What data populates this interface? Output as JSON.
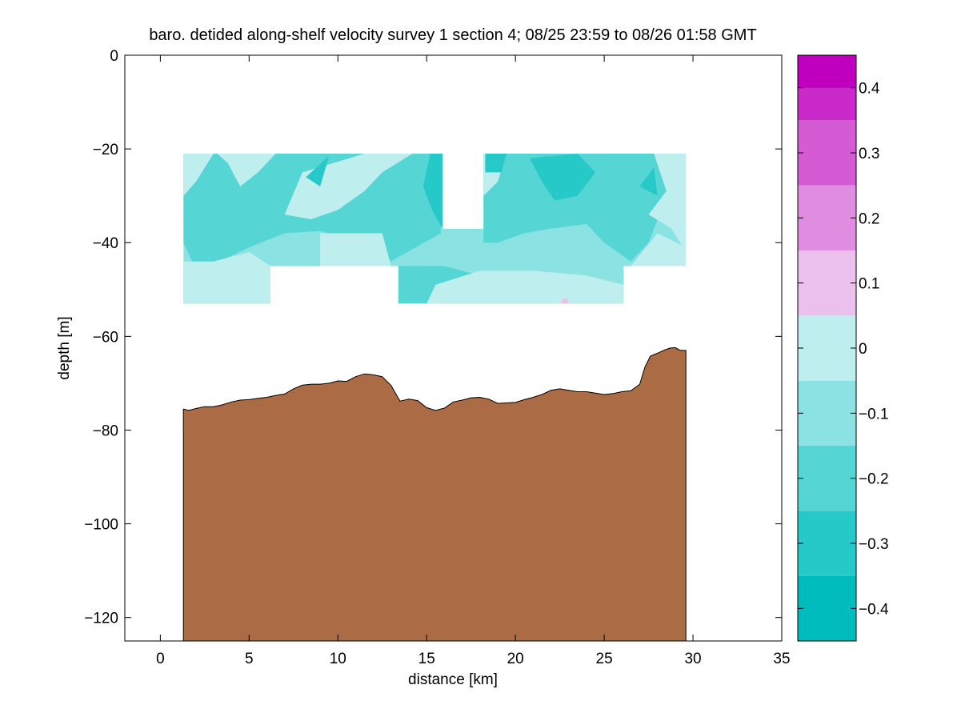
{
  "chart_data": {
    "type": "heatmap",
    "title": "baro. detided along-shelf velocity survey 1 section 4; 08/25 23:59 to 08/26 01:58 GMT",
    "xlabel": "distance [km]",
    "ylabel": "depth [m]",
    "xlim": [
      -2,
      35
    ],
    "ylim": [
      -125,
      0
    ],
    "x_ticks": [
      0,
      5,
      10,
      15,
      20,
      25,
      30,
      35
    ],
    "x_tick_labels": [
      "0",
      "5",
      "10",
      "15",
      "20",
      "25",
      "30",
      "35"
    ],
    "y_ticks": [
      0,
      -20,
      -40,
      -60,
      -80,
      -100,
      -120
    ],
    "y_tick_labels": [
      "0",
      "−20",
      "−40",
      "−60",
      "−80",
      "−100",
      "−120"
    ],
    "grid": false,
    "colorbar": {
      "range": [
        -0.45,
        0.45
      ],
      "levels": [
        {
          "from": -0.45,
          "to": -0.35,
          "color": "#00BCBC"
        },
        {
          "from": -0.35,
          "to": -0.25,
          "color": "#26C8C8"
        },
        {
          "from": -0.25,
          "to": -0.15,
          "color": "#56D5D5"
        },
        {
          "from": -0.15,
          "to": -0.05,
          "color": "#8BE2E2"
        },
        {
          "from": -0.05,
          "to": 0.05,
          "color": "#BFEEEE"
        },
        {
          "from": 0.05,
          "to": 0.15,
          "color": "#ECC0EC"
        },
        {
          "from": 0.15,
          "to": 0.25,
          "color": "#E08CE0"
        },
        {
          "from": 0.25,
          "to": 0.35,
          "color": "#D55BD5"
        },
        {
          "from": 0.35,
          "to": 0.45,
          "color": "#C92AC9"
        }
      ],
      "top_color": "#BE00BE",
      "tick_values": [
        0.4,
        0.3,
        0.2,
        0.1,
        0,
        -0.1,
        -0.2,
        -0.3,
        -0.4
      ],
      "tick_labels": [
        "0.4",
        "0.3",
        "0.2",
        "0.1",
        "0",
        "−0.1",
        "−0.2",
        "−0.3",
        "−0.4"
      ]
    },
    "velocity_field": {
      "outline": [
        [
          1.3,
          -21
        ],
        [
          15.9,
          -21
        ],
        [
          15.9,
          -37
        ],
        [
          18.2,
          -37
        ],
        [
          18.2,
          -21
        ],
        [
          29.6,
          -21
        ],
        [
          29.6,
          -45
        ],
        [
          26.1,
          -45
        ],
        [
          26.1,
          -53
        ],
        [
          13.4,
          -53
        ],
        [
          13.4,
          -45
        ],
        [
          6.2,
          -45
        ],
        [
          6.2,
          -53
        ],
        [
          1.3,
          -53
        ]
      ],
      "base_value": -0.1,
      "patches": [
        {
          "value": -0.2,
          "points": [
            [
              1.3,
              -21
            ],
            [
              15.8,
              -21
            ],
            [
              15.8,
              -38
            ],
            [
              12.5,
              -45
            ],
            [
              11.5,
              -40
            ],
            [
              9.0,
              -37.5
            ],
            [
              7.0,
              -38
            ],
            [
              5.0,
              -41
            ],
            [
              2.8,
              -45
            ],
            [
              1.8,
              -44
            ],
            [
              1.3,
              -40
            ]
          ]
        },
        {
          "value": -0.2,
          "points": [
            [
              18.2,
              -21
            ],
            [
              29.6,
              -21
            ],
            [
              29.6,
              -28
            ],
            [
              28.0,
              -35
            ],
            [
              27.5,
              -40
            ],
            [
              26.5,
              -44
            ],
            [
              25.0,
              -40
            ],
            [
              24.0,
              -36
            ],
            [
              22.0,
              -37
            ],
            [
              20.5,
              -38
            ],
            [
              19.0,
              -40
            ],
            [
              18.2,
              -40
            ]
          ]
        },
        {
          "value": -0.2,
          "points": [
            [
              13.4,
              -45
            ],
            [
              16.0,
              -45
            ],
            [
              18.0,
              -47
            ],
            [
              21.0,
              -48
            ],
            [
              26.1,
              -49
            ],
            [
              26.1,
              -53
            ],
            [
              13.4,
              -53
            ]
          ]
        },
        {
          "value": -0.2,
          "points": [
            [
              1.3,
              -53
            ],
            [
              1.3,
              -47
            ],
            [
              3.5,
              -46
            ],
            [
              4.8,
              -48
            ],
            [
              6.2,
              -50
            ],
            [
              6.2,
              -53
            ]
          ]
        },
        {
          "value": 0,
          "points": [
            [
              1.3,
              -21
            ],
            [
              3.0,
              -21
            ],
            [
              2.0,
              -27
            ],
            [
              1.3,
              -30
            ]
          ]
        },
        {
          "value": 0,
          "points": [
            [
              3.2,
              -21
            ],
            [
              6.5,
              -21
            ],
            [
              5.5,
              -25
            ],
            [
              4.5,
              -28
            ],
            [
              3.8,
              -23
            ]
          ]
        },
        {
          "value": 0,
          "points": [
            [
              8.0,
              -25
            ],
            [
              11.5,
              -21
            ],
            [
              14.2,
              -21
            ],
            [
              12.5,
              -25
            ],
            [
              11.5,
              -29
            ],
            [
              10.0,
              -33
            ],
            [
              8.5,
              -35
            ],
            [
              7.0,
              -34
            ]
          ]
        },
        {
          "value": 0,
          "points": [
            [
              9.0,
              -38
            ],
            [
              12.5,
              -38
            ],
            [
              13.0,
              -45
            ],
            [
              11.0,
              -45
            ],
            [
              9.0,
              -45
            ]
          ]
        },
        {
          "value": 0,
          "points": [
            [
              18.2,
              -21
            ],
            [
              19.5,
              -21
            ],
            [
              19.0,
              -27
            ],
            [
              18.2,
              -30
            ]
          ]
        },
        {
          "value": 0,
          "points": [
            [
              27.8,
              -21
            ],
            [
              29.6,
              -21
            ],
            [
              29.6,
              -42
            ],
            [
              28.8,
              -37
            ],
            [
              27.5,
              -34
            ],
            [
              28.5,
              -29
            ]
          ]
        },
        {
          "value": 0,
          "points": [
            [
              26.5,
              -45
            ],
            [
              29.6,
              -45
            ],
            [
              29.6,
              -41
            ],
            [
              28.0,
              -38
            ]
          ]
        },
        {
          "value": 0,
          "points": [
            [
              1.3,
              -53
            ],
            [
              1.3,
              -44
            ],
            [
              3.0,
              -44
            ],
            [
              5.0,
              -42
            ],
            [
              6.2,
              -45
            ],
            [
              6.2,
              -53
            ]
          ]
        },
        {
          "value": 0,
          "points": [
            [
              15.0,
              -53
            ],
            [
              15.5,
              -49
            ],
            [
              18.0,
              -46
            ],
            [
              21.0,
              -46
            ],
            [
              24.0,
              -47
            ],
            [
              26.1,
              -49
            ],
            [
              26.1,
              -53
            ]
          ]
        },
        {
          "value": -0.3,
          "points": [
            [
              15.2,
              -21
            ],
            [
              15.9,
              -21
            ],
            [
              15.9,
              -37
            ],
            [
              15.3,
              -33
            ],
            [
              14.8,
              -28
            ]
          ]
        },
        {
          "value": -0.3,
          "points": [
            [
              18.3,
              -21
            ],
            [
              19.5,
              -21
            ],
            [
              19.2,
              -25
            ],
            [
              18.3,
              -25
            ]
          ]
        },
        {
          "value": -0.3,
          "points": [
            [
              20.8,
              -22
            ],
            [
              23.5,
              -21
            ],
            [
              24.5,
              -25
            ],
            [
              23.5,
              -30
            ],
            [
              22.2,
              -31
            ],
            [
              21.5,
              -27
            ]
          ]
        },
        {
          "value": -0.3,
          "points": [
            [
              8.2,
              -26
            ],
            [
              9.5,
              -21.5
            ],
            [
              9.0,
              -28
            ]
          ]
        },
        {
          "value": -0.3,
          "points": [
            [
              27.0,
              -28
            ],
            [
              27.8,
              -24
            ],
            [
              28.0,
              -30
            ]
          ]
        },
        {
          "value": 0.1,
          "points": [
            [
              22.6,
              -52.2
            ],
            [
              22.9,
              -51.8
            ],
            [
              23.0,
              -53
            ],
            [
              22.6,
              -53
            ]
          ]
        }
      ]
    },
    "bathymetry": {
      "fill_color": "#AA6B45",
      "x": [
        1.3,
        1.6,
        2.0,
        2.5,
        3.0,
        3.5,
        4.0,
        4.5,
        5.0,
        5.5,
        6.0,
        6.5,
        7.0,
        7.5,
        8.0,
        8.5,
        9.0,
        9.5,
        10.0,
        10.5,
        11.0,
        11.5,
        12.0,
        12.5,
        13.0,
        13.5,
        14.0,
        14.5,
        15.0,
        15.5,
        16.0,
        16.5,
        17.0,
        17.5,
        18.0,
        18.5,
        19.0,
        19.5,
        20.0,
        20.5,
        21.0,
        21.5,
        22.0,
        22.5,
        23.0,
        23.5,
        24.0,
        24.5,
        25.0,
        25.5,
        26.0,
        26.5,
        27.0,
        27.3,
        27.6,
        28.0,
        28.4,
        28.7,
        29.0,
        29.3,
        29.6
      ],
      "depth": [
        -75.5,
        -75.8,
        -75.4,
        -75.0,
        -75.0,
        -74.6,
        -74.0,
        -73.6,
        -73.5,
        -73.2,
        -73.0,
        -72.6,
        -72.3,
        -71.2,
        -70.4,
        -70.2,
        -70.2,
        -70.0,
        -69.5,
        -69.6,
        -68.6,
        -68.0,
        -68.2,
        -68.6,
        -70.5,
        -73.8,
        -73.4,
        -73.7,
        -75.2,
        -75.8,
        -75.3,
        -74.0,
        -73.6,
        -73.1,
        -73.0,
        -73.4,
        -74.3,
        -74.2,
        -74.1,
        -73.5,
        -73.0,
        -72.4,
        -71.5,
        -71.2,
        -71.5,
        -71.8,
        -71.8,
        -72.1,
        -72.4,
        -72.2,
        -71.8,
        -71.6,
        -70.2,
        -66.5,
        -64.2,
        -63.6,
        -62.9,
        -62.5,
        -62.4,
        -63.0,
        -63.0
      ]
    }
  }
}
